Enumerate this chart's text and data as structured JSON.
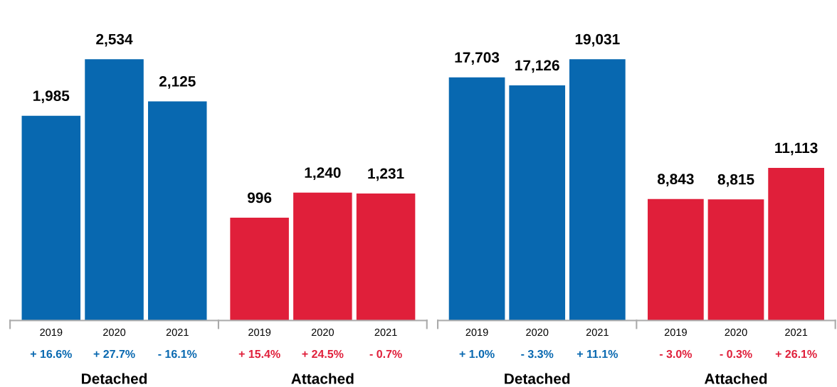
{
  "chart_data": [
    {
      "type": "bar",
      "categories": [
        "2019",
        "2020",
        "2021",
        "2019",
        "2020",
        "2021"
      ],
      "data_labels": true,
      "series": [
        {
          "color": "#0868b0",
          "values": [
            1985,
            2534,
            2125,
            null,
            null,
            null
          ],
          "value_labels": [
            "1,985",
            "2,534",
            "2,125",
            null,
            null,
            null
          ]
        },
        {
          "color": "#e01f3a",
          "values": [
            null,
            null,
            null,
            996,
            1240,
            1231
          ],
          "value_labels": [
            null,
            null,
            null,
            "996",
            "1,240",
            "1,231"
          ]
        }
      ],
      "annotations": [
        "+ 16.6%",
        "+ 27.7%",
        "- 16.1%",
        "+ 15.4%",
        "+ 24.5%",
        "- 0.7%",
        "Detached",
        "Attached"
      ]
    },
    {
      "type": "bar",
      "categories": [
        "2019",
        "2020",
        "2021",
        "2019",
        "2020",
        "2021"
      ],
      "data_labels": true,
      "series": [
        {
          "color": "#0868b0",
          "values": [
            17703,
            17126,
            19031,
            null,
            null,
            null
          ],
          "value_labels": [
            "17,703",
            "17,126",
            "19,031",
            null,
            null,
            null
          ]
        },
        {
          "color": "#e01f3a",
          "values": [
            null,
            null,
            null,
            8843,
            8815,
            11113
          ],
          "value_labels": [
            null,
            null,
            null,
            "8,843",
            "8,815",
            "11,113"
          ]
        }
      ],
      "annotations": [
        "+ 1.0%",
        "- 3.3%",
        "+ 11.1%",
        "- 3.0%",
        "- 0.3%",
        "+ 26.1%",
        "Detached",
        "Attached"
      ]
    }
  ]
}
